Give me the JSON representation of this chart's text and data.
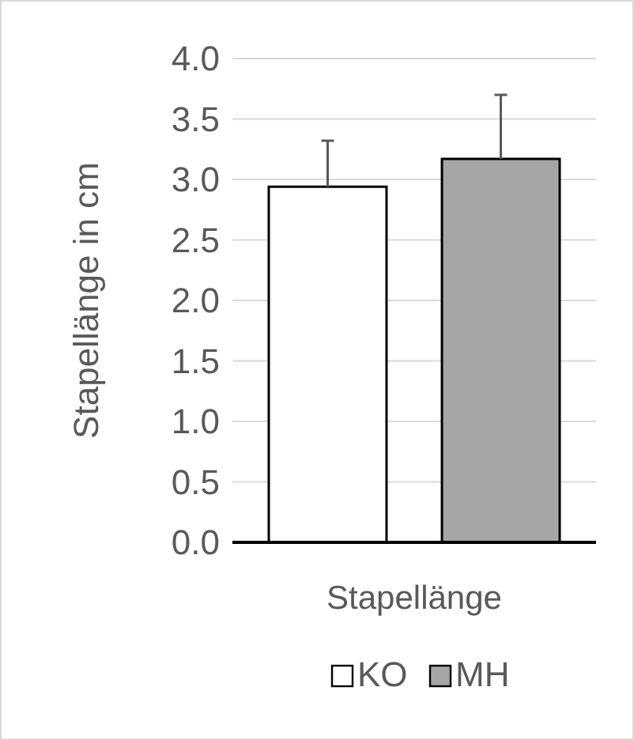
{
  "chart_data": {
    "type": "bar",
    "ylabel": "Stapellänge in cm",
    "categories": [
      "Stapellänge"
    ],
    "series": [
      {
        "name": "KO",
        "color": "#ffffff",
        "values": [
          2.94
        ],
        "errors": [
          [
            2.94,
            3.32
          ]
        ]
      },
      {
        "name": "MH",
        "color": "#a6a6a6",
        "values": [
          3.17
        ],
        "errors": [
          [
            3.17,
            3.7
          ]
        ]
      }
    ],
    "ylim": [
      0,
      4
    ],
    "yticks": [
      {
        "value": 0,
        "label": "0.0"
      },
      {
        "value": 0.5,
        "label": "0.5"
      },
      {
        "value": 1,
        "label": "1.0"
      },
      {
        "value": 1.5,
        "label": "1.5"
      },
      {
        "value": 2,
        "label": "2.0"
      },
      {
        "value": 2.5,
        "label": "2.5"
      },
      {
        "value": 3,
        "label": "3.0"
      },
      {
        "value": 3.5,
        "label": "3.5"
      },
      {
        "value": 4,
        "label": "4.0"
      }
    ],
    "grid": "y",
    "legend": "bottom"
  }
}
